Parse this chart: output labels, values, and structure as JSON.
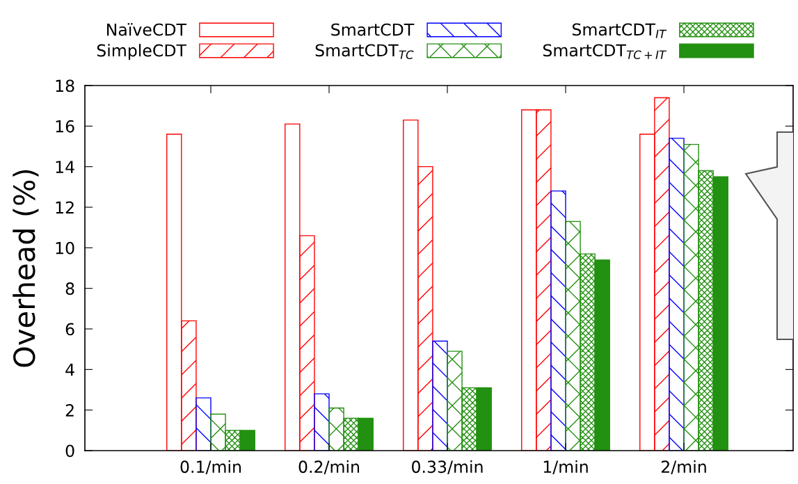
{
  "chart_data": {
    "type": "bar",
    "ylabel": "Overhead (%)",
    "categories": [
      "0.1/min",
      "0.2/min",
      "0.33/min",
      "1/min",
      "2/min"
    ],
    "series": [
      {
        "name": "NaïveCDT",
        "color": "#ff0000",
        "values": [
          15.6,
          16.1,
          16.3,
          16.8,
          15.6
        ]
      },
      {
        "name": "SimpleCDT",
        "color": "#ff0000",
        "values": [
          6.4,
          10.6,
          14.0,
          16.8,
          17.4
        ]
      },
      {
        "name": "SmartCDT",
        "color": "#0000ff",
        "values": [
          2.6,
          2.8,
          5.4,
          12.8,
          15.4
        ]
      },
      {
        "name": "SmartCDT$_{TC}$",
        "color": "#229010",
        "values": [
          1.8,
          2.1,
          4.9,
          11.3,
          15.1
        ]
      },
      {
        "name": "SmartCDT$_{IT}$",
        "color": "#229010",
        "values": [
          1.0,
          1.6,
          3.1,
          9.7,
          13.8
        ]
      },
      {
        "name": "SmartCDT$_{TC+IT}$",
        "color": "#229010",
        "values": [
          1.0,
          1.6,
          3.1,
          9.4,
          13.5
        ]
      }
    ],
    "ylim": [
      0,
      18
    ],
    "yticks": [
      0,
      2,
      4,
      6,
      8,
      10,
      12,
      14,
      16,
      18
    ],
    "grid": false,
    "legend": "top"
  }
}
